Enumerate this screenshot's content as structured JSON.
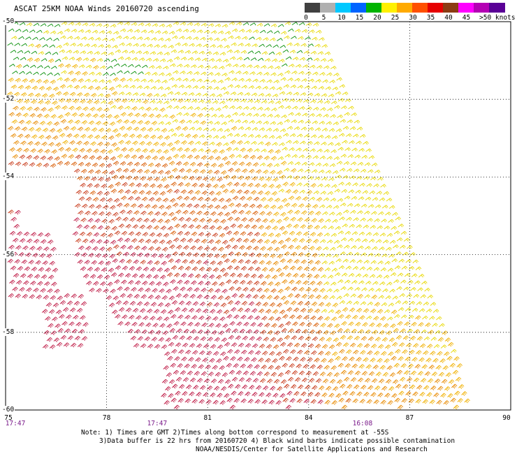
{
  "title": "ASCAT 25KM NOAA Winds 20160720 ascending",
  "legend": {
    "units": ">50 knots",
    "ticks": [
      "0",
      "5",
      "10",
      "15",
      "20",
      "25",
      "30",
      "35",
      "40",
      "45"
    ],
    "colors": [
      "#404040",
      "#b0b0b0",
      "#00c8ff",
      "#0064ff",
      "#00b400",
      "#fff000",
      "#ffaa00",
      "#ff5000",
      "#e60000",
      "#8c3c14",
      "#ff00ff",
      "#b400b4",
      "#5a0096"
    ]
  },
  "axes": {
    "lon_labels": [
      "75",
      "78",
      "81",
      "84",
      "87",
      "90"
    ],
    "lat_labels": [
      "-50",
      "-52",
      "-54",
      "-56",
      "-58",
      "-60"
    ],
    "lon_range": [
      75,
      90
    ],
    "lat_range": [
      -50,
      -60
    ],
    "grid": "dotted"
  },
  "times": [
    {
      "label": "17:47",
      "lon": 75
    },
    {
      "label": "17:47",
      "lon": 79.5
    },
    {
      "label": "16:08",
      "lon": 85.6
    }
  ],
  "notes": {
    "line1": "Note: 1) Times are GMT 2)Times along bottom correspond to measurement at -55S",
    "line2": "3)Data buffer is 22 hrs from 20160720 4) Black wind barbs indicate possible contamination",
    "line3": "NOAA/NESDIS/Center for Satellite Applications and Research"
  },
  "swath": {
    "polygon": [
      [
        75,
        -50
      ],
      [
        84.2,
        -50
      ],
      [
        87.1,
        -56
      ],
      [
        88.9,
        -60
      ],
      [
        75,
        -60
      ]
    ],
    "barb_direction": "westerly"
  }
}
